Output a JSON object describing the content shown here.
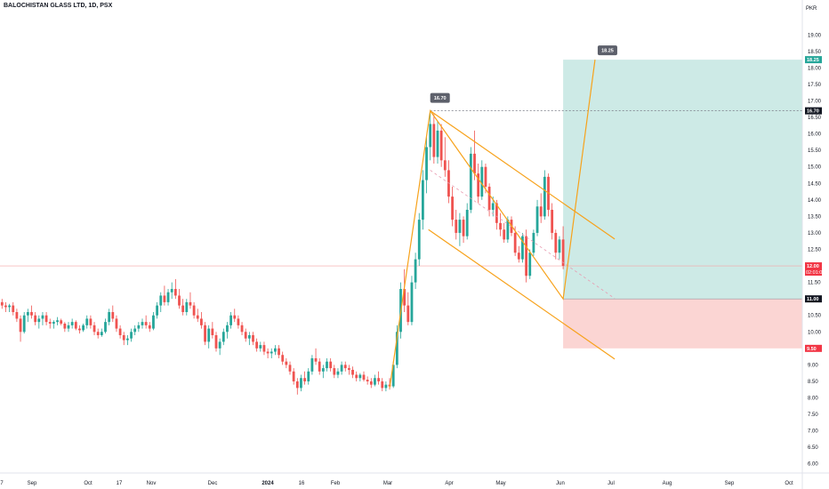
{
  "header": {
    "title": "BALOCHISTAN GLASS LTD, 1D, PSX",
    "currency": "PKR"
  },
  "chart_data": {
    "type": "candlestick",
    "ylim": [
      5.75,
      19.25
    ],
    "y_ticks": [
      "6.00",
      "6.50",
      "7.00",
      "7.50",
      "8.00",
      "8.50",
      "9.00",
      "9.50",
      "10.00",
      "10.50",
      "11.00",
      "11.50",
      "12.00",
      "12.50",
      "13.00",
      "13.50",
      "14.00",
      "14.50",
      "15.00",
      "15.50",
      "16.00",
      "16.50",
      "17.00",
      "17.50",
      "18.00",
      "18.50",
      "19.00"
    ],
    "x_ticks": [
      "7",
      "Sep",
      "Oct",
      "17",
      "Nov",
      "Dec",
      "2024",
      "16",
      "Feb",
      "Mar",
      "Apr",
      "May",
      "Jun",
      "Jul",
      "Aug",
      "Sep",
      "Oct"
    ],
    "price_labels": {
      "target": "18.25",
      "high": "16.70",
      "current": "12.00",
      "countdown": "02:01:04",
      "entry": "11.00",
      "stop": "9.50"
    },
    "callouts": {
      "peak": "16.70",
      "target": "18.25"
    },
    "candles": [
      [
        11.1,
        11.2,
        10.9,
        11.0
      ],
      [
        11.0,
        11.1,
        10.8,
        10.9
      ],
      [
        10.9,
        11.0,
        10.7,
        10.8
      ],
      [
        10.8,
        10.9,
        10.6,
        10.75
      ],
      [
        10.75,
        10.85,
        10.6,
        10.8
      ],
      [
        10.8,
        10.9,
        10.5,
        10.6
      ],
      [
        10.6,
        10.7,
        10.3,
        10.4
      ],
      [
        10.4,
        10.5,
        9.7,
        10.0
      ],
      [
        10.0,
        10.6,
        9.95,
        10.5
      ],
      [
        10.5,
        10.7,
        10.3,
        10.6
      ],
      [
        10.6,
        10.8,
        10.4,
        10.5
      ],
      [
        10.5,
        10.6,
        10.2,
        10.3
      ],
      [
        10.3,
        10.5,
        10.1,
        10.4
      ],
      [
        10.4,
        10.6,
        10.2,
        10.5
      ],
      [
        10.5,
        10.6,
        10.2,
        10.3
      ],
      [
        10.3,
        10.4,
        10.1,
        10.25
      ],
      [
        10.25,
        10.35,
        10.1,
        10.3
      ],
      [
        10.3,
        10.45,
        10.2,
        10.35
      ],
      [
        10.35,
        10.4,
        10.2,
        10.25
      ],
      [
        10.25,
        10.3,
        10.0,
        10.1
      ],
      [
        10.1,
        10.3,
        10.0,
        10.2
      ],
      [
        10.2,
        10.4,
        10.1,
        10.3
      ],
      [
        10.3,
        10.35,
        10.05,
        10.1
      ],
      [
        10.1,
        10.2,
        9.95,
        10.05
      ],
      [
        10.05,
        10.25,
        10.0,
        10.2
      ],
      [
        10.2,
        10.5,
        10.1,
        10.4
      ],
      [
        10.4,
        10.5,
        10.1,
        10.2
      ],
      [
        10.2,
        10.3,
        9.9,
        10.0
      ],
      [
        10.0,
        10.1,
        9.8,
        9.9
      ],
      [
        9.9,
        10.1,
        9.85,
        10.0
      ],
      [
        10.0,
        10.4,
        9.95,
        10.3
      ],
      [
        10.3,
        10.7,
        10.2,
        10.6
      ],
      [
        10.6,
        10.8,
        10.3,
        10.4
      ],
      [
        10.4,
        10.5,
        10.0,
        10.1
      ],
      [
        10.1,
        10.2,
        9.8,
        9.9
      ],
      [
        9.9,
        10.0,
        9.6,
        9.75
      ],
      [
        9.75,
        9.9,
        9.6,
        9.8
      ],
      [
        9.8,
        10.1,
        9.7,
        10.0
      ],
      [
        10.0,
        10.2,
        9.9,
        10.1
      ],
      [
        10.1,
        10.3,
        10.0,
        10.2
      ],
      [
        10.2,
        10.4,
        10.1,
        10.3
      ],
      [
        10.3,
        10.5,
        10.1,
        10.2
      ],
      [
        10.2,
        10.3,
        10.0,
        10.1
      ],
      [
        10.1,
        10.6,
        10.05,
        10.5
      ],
      [
        10.5,
        10.9,
        10.4,
        10.8
      ],
      [
        10.8,
        11.2,
        10.6,
        11.1
      ],
      [
        11.1,
        11.4,
        10.8,
        10.9
      ],
      [
        10.9,
        11.3,
        10.8,
        11.2
      ],
      [
        11.2,
        11.5,
        11.0,
        11.3
      ],
      [
        11.3,
        11.6,
        11.0,
        11.1
      ],
      [
        11.1,
        11.3,
        10.7,
        10.8
      ],
      [
        10.8,
        11.0,
        10.5,
        10.6
      ],
      [
        10.6,
        11.0,
        10.5,
        10.9
      ],
      [
        10.9,
        11.2,
        10.7,
        10.8
      ],
      [
        10.8,
        10.9,
        10.4,
        10.5
      ],
      [
        10.5,
        10.7,
        10.3,
        10.4
      ],
      [
        10.4,
        10.6,
        10.1,
        10.2
      ],
      [
        10.2,
        10.3,
        9.6,
        9.7
      ],
      [
        9.7,
        10.2,
        9.5,
        10.1
      ],
      [
        10.1,
        10.3,
        9.8,
        9.9
      ],
      [
        9.9,
        10.0,
        9.4,
        9.5
      ],
      [
        9.5,
        9.8,
        9.3,
        9.7
      ],
      [
        9.7,
        10.1,
        9.6,
        10.0
      ],
      [
        10.0,
        10.3,
        9.8,
        10.2
      ],
      [
        10.2,
        10.6,
        10.1,
        10.5
      ],
      [
        10.5,
        10.7,
        10.3,
        10.4
      ],
      [
        10.4,
        10.5,
        10.1,
        10.2
      ],
      [
        10.2,
        10.3,
        9.9,
        10.0
      ],
      [
        10.0,
        10.1,
        9.7,
        9.8
      ],
      [
        9.8,
        10.0,
        9.6,
        9.9
      ],
      [
        9.9,
        10.0,
        9.6,
        9.7
      ],
      [
        9.7,
        9.8,
        9.4,
        9.5
      ],
      [
        9.5,
        9.7,
        9.4,
        9.6
      ],
      [
        9.6,
        9.7,
        9.3,
        9.4
      ],
      [
        9.4,
        9.5,
        9.2,
        9.35
      ],
      [
        9.35,
        9.5,
        9.2,
        9.4
      ],
      [
        9.4,
        9.6,
        9.3,
        9.5
      ],
      [
        9.5,
        9.6,
        9.2,
        9.3
      ],
      [
        9.3,
        9.4,
        9.0,
        9.1
      ],
      [
        9.1,
        9.2,
        8.9,
        9.0
      ],
      [
        9.0,
        9.1,
        8.7,
        8.8
      ],
      [
        8.8,
        8.9,
        8.4,
        8.5
      ],
      [
        8.5,
        8.6,
        8.1,
        8.3
      ],
      [
        8.3,
        8.7,
        8.2,
        8.6
      ],
      [
        8.6,
        8.8,
        8.4,
        8.5
      ],
      [
        8.5,
        8.9,
        8.4,
        8.8
      ],
      [
        8.8,
        9.3,
        8.7,
        9.2
      ],
      [
        9.2,
        9.5,
        9.0,
        9.1
      ],
      [
        9.1,
        9.2,
        8.7,
        8.8
      ],
      [
        8.8,
        9.0,
        8.6,
        8.9
      ],
      [
        8.9,
        9.2,
        8.8,
        9.1
      ],
      [
        9.1,
        9.2,
        8.8,
        8.9
      ],
      [
        8.9,
        9.0,
        8.6,
        8.7
      ],
      [
        8.7,
        8.9,
        8.6,
        8.8
      ],
      [
        8.8,
        9.1,
        8.7,
        9.0
      ],
      [
        9.0,
        9.1,
        8.8,
        8.9
      ],
      [
        8.9,
        9.0,
        8.7,
        8.85
      ],
      [
        8.85,
        8.95,
        8.6,
        8.7
      ],
      [
        8.7,
        8.8,
        8.5,
        8.6
      ],
      [
        8.6,
        8.75,
        8.5,
        8.7
      ],
      [
        8.7,
        8.8,
        8.5,
        8.55
      ],
      [
        8.55,
        8.65,
        8.4,
        8.5
      ],
      [
        8.5,
        8.6,
        8.3,
        8.4
      ],
      [
        8.4,
        8.7,
        8.35,
        8.6
      ],
      [
        8.6,
        8.8,
        8.4,
        8.5
      ],
      [
        8.5,
        8.6,
        8.2,
        8.3
      ],
      [
        8.3,
        8.5,
        8.2,
        8.4
      ],
      [
        8.4,
        8.6,
        8.25,
        8.35
      ],
      [
        8.35,
        9.1,
        8.3,
        9.0
      ],
      [
        9.0,
        10.2,
        8.9,
        10.0
      ],
      [
        10.0,
        11.5,
        9.8,
        11.3
      ],
      [
        11.3,
        11.9,
        10.6,
        10.8
      ],
      [
        10.8,
        11.2,
        10.2,
        10.3
      ],
      [
        10.3,
        11.7,
        10.2,
        11.5
      ],
      [
        11.5,
        12.4,
        11.3,
        12.2
      ],
      [
        12.2,
        13.6,
        12.0,
        13.4
      ],
      [
        13.4,
        14.9,
        13.1,
        14.6
      ],
      [
        14.6,
        15.9,
        14.2,
        15.6
      ],
      [
        15.6,
        16.7,
        15.2,
        16.3
      ],
      [
        16.3,
        16.6,
        15.1,
        15.3
      ],
      [
        15.3,
        16.4,
        15.1,
        16.1
      ],
      [
        16.1,
        16.3,
        15.0,
        15.2
      ],
      [
        15.2,
        15.9,
        14.7,
        14.9
      ],
      [
        14.9,
        15.2,
        13.9,
        14.1
      ],
      [
        14.1,
        14.4,
        13.2,
        13.4
      ],
      [
        13.4,
        13.7,
        12.8,
        13.0
      ],
      [
        13.0,
        13.6,
        12.6,
        13.4
      ],
      [
        13.4,
        13.5,
        12.7,
        12.9
      ],
      [
        12.9,
        13.9,
        12.8,
        13.7
      ],
      [
        13.7,
        15.6,
        13.6,
        15.4
      ],
      [
        15.4,
        16.1,
        14.6,
        14.8
      ],
      [
        14.8,
        15.1,
        13.9,
        14.1
      ],
      [
        14.1,
        15.2,
        14.0,
        15.0
      ],
      [
        15.0,
        15.1,
        14.2,
        14.4
      ],
      [
        14.4,
        14.5,
        13.5,
        13.7
      ],
      [
        13.7,
        14.1,
        13.5,
        13.9
      ],
      [
        13.9,
        14.0,
        13.1,
        13.3
      ],
      [
        13.3,
        13.6,
        12.9,
        13.1
      ],
      [
        13.1,
        13.3,
        12.7,
        12.8
      ],
      [
        12.8,
        13.5,
        12.7,
        13.4
      ],
      [
        13.4,
        13.5,
        12.9,
        13.0
      ],
      [
        13.0,
        13.2,
        12.3,
        12.4
      ],
      [
        12.4,
        12.6,
        12.1,
        12.2
      ],
      [
        12.2,
        13.0,
        12.1,
        12.9
      ],
      [
        12.9,
        13.1,
        11.5,
        11.7
      ],
      [
        11.7,
        12.5,
        11.6,
        12.4
      ],
      [
        12.4,
        13.1,
        12.3,
        13.0
      ],
      [
        13.0,
        14.0,
        12.9,
        13.8
      ],
      [
        13.8,
        14.2,
        13.3,
        13.5
      ],
      [
        13.5,
        14.9,
        13.4,
        14.7
      ],
      [
        14.7,
        14.8,
        13.5,
        13.7
      ],
      [
        13.7,
        13.9,
        12.8,
        13.0
      ],
      [
        13.0,
        13.1,
        12.2,
        12.4
      ],
      [
        12.4,
        12.9,
        12.2,
        12.8
      ],
      [
        12.8,
        13.2,
        11.9,
        12.0
      ]
    ],
    "swing_line": [
      [
        0.3,
        8.3
      ],
      [
        0.5,
        16.7
      ],
      [
        1.0,
        11.0
      ],
      [
        1.12,
        18.25
      ]
    ],
    "channel_upper": [
      [
        0.5,
        16.7
      ],
      [
        1.0,
        13.9
      ]
    ],
    "channel_lower": [
      [
        0.5,
        13.1
      ],
      [
        1.0,
        10.3
      ]
    ],
    "long_position": {
      "entry": 11.0,
      "target": 18.25,
      "stop": 9.5
    },
    "colors": {
      "up": "#26a69a",
      "down": "#ef5350",
      "accent": "#f7a21b",
      "profit": "#cdeae6",
      "loss": "#fbd5d3",
      "label": "#5d606b",
      "last_price": "#f23645",
      "axis_text": "#131722"
    }
  }
}
